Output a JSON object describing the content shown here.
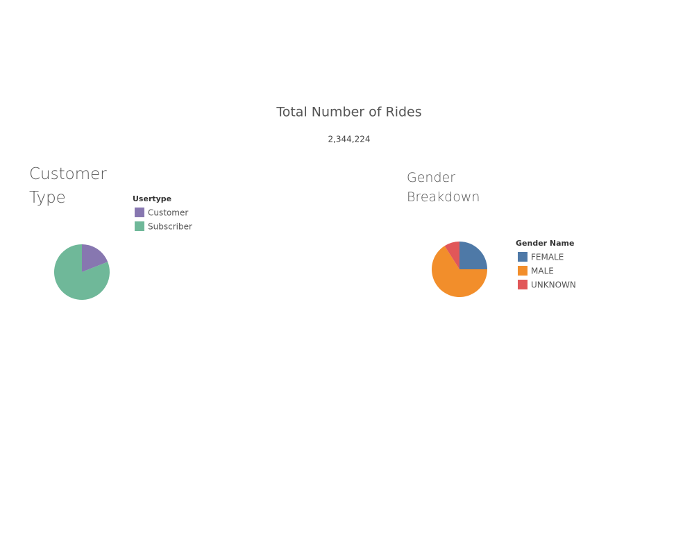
{
  "kpi": {
    "title": "Total Number of Rides",
    "value_text": "2,344,224"
  },
  "chart_data": [
    {
      "type": "pie",
      "title": "Customer Type",
      "legend_title": "Usertype",
      "categories": [
        "Customer",
        "Subscriber"
      ],
      "values": [
        19,
        81
      ],
      "colors": [
        "#8777b0",
        "#6fb899"
      ]
    },
    {
      "type": "pie",
      "title": "Gender Breakdown",
      "legend_title": "Gender Name",
      "categories": [
        "FEMALE",
        "MALE",
        "UNKNOWN"
      ],
      "values": [
        25,
        66,
        9
      ],
      "colors": [
        "#4e79a7",
        "#f28e2b",
        "#e15759"
      ]
    }
  ]
}
